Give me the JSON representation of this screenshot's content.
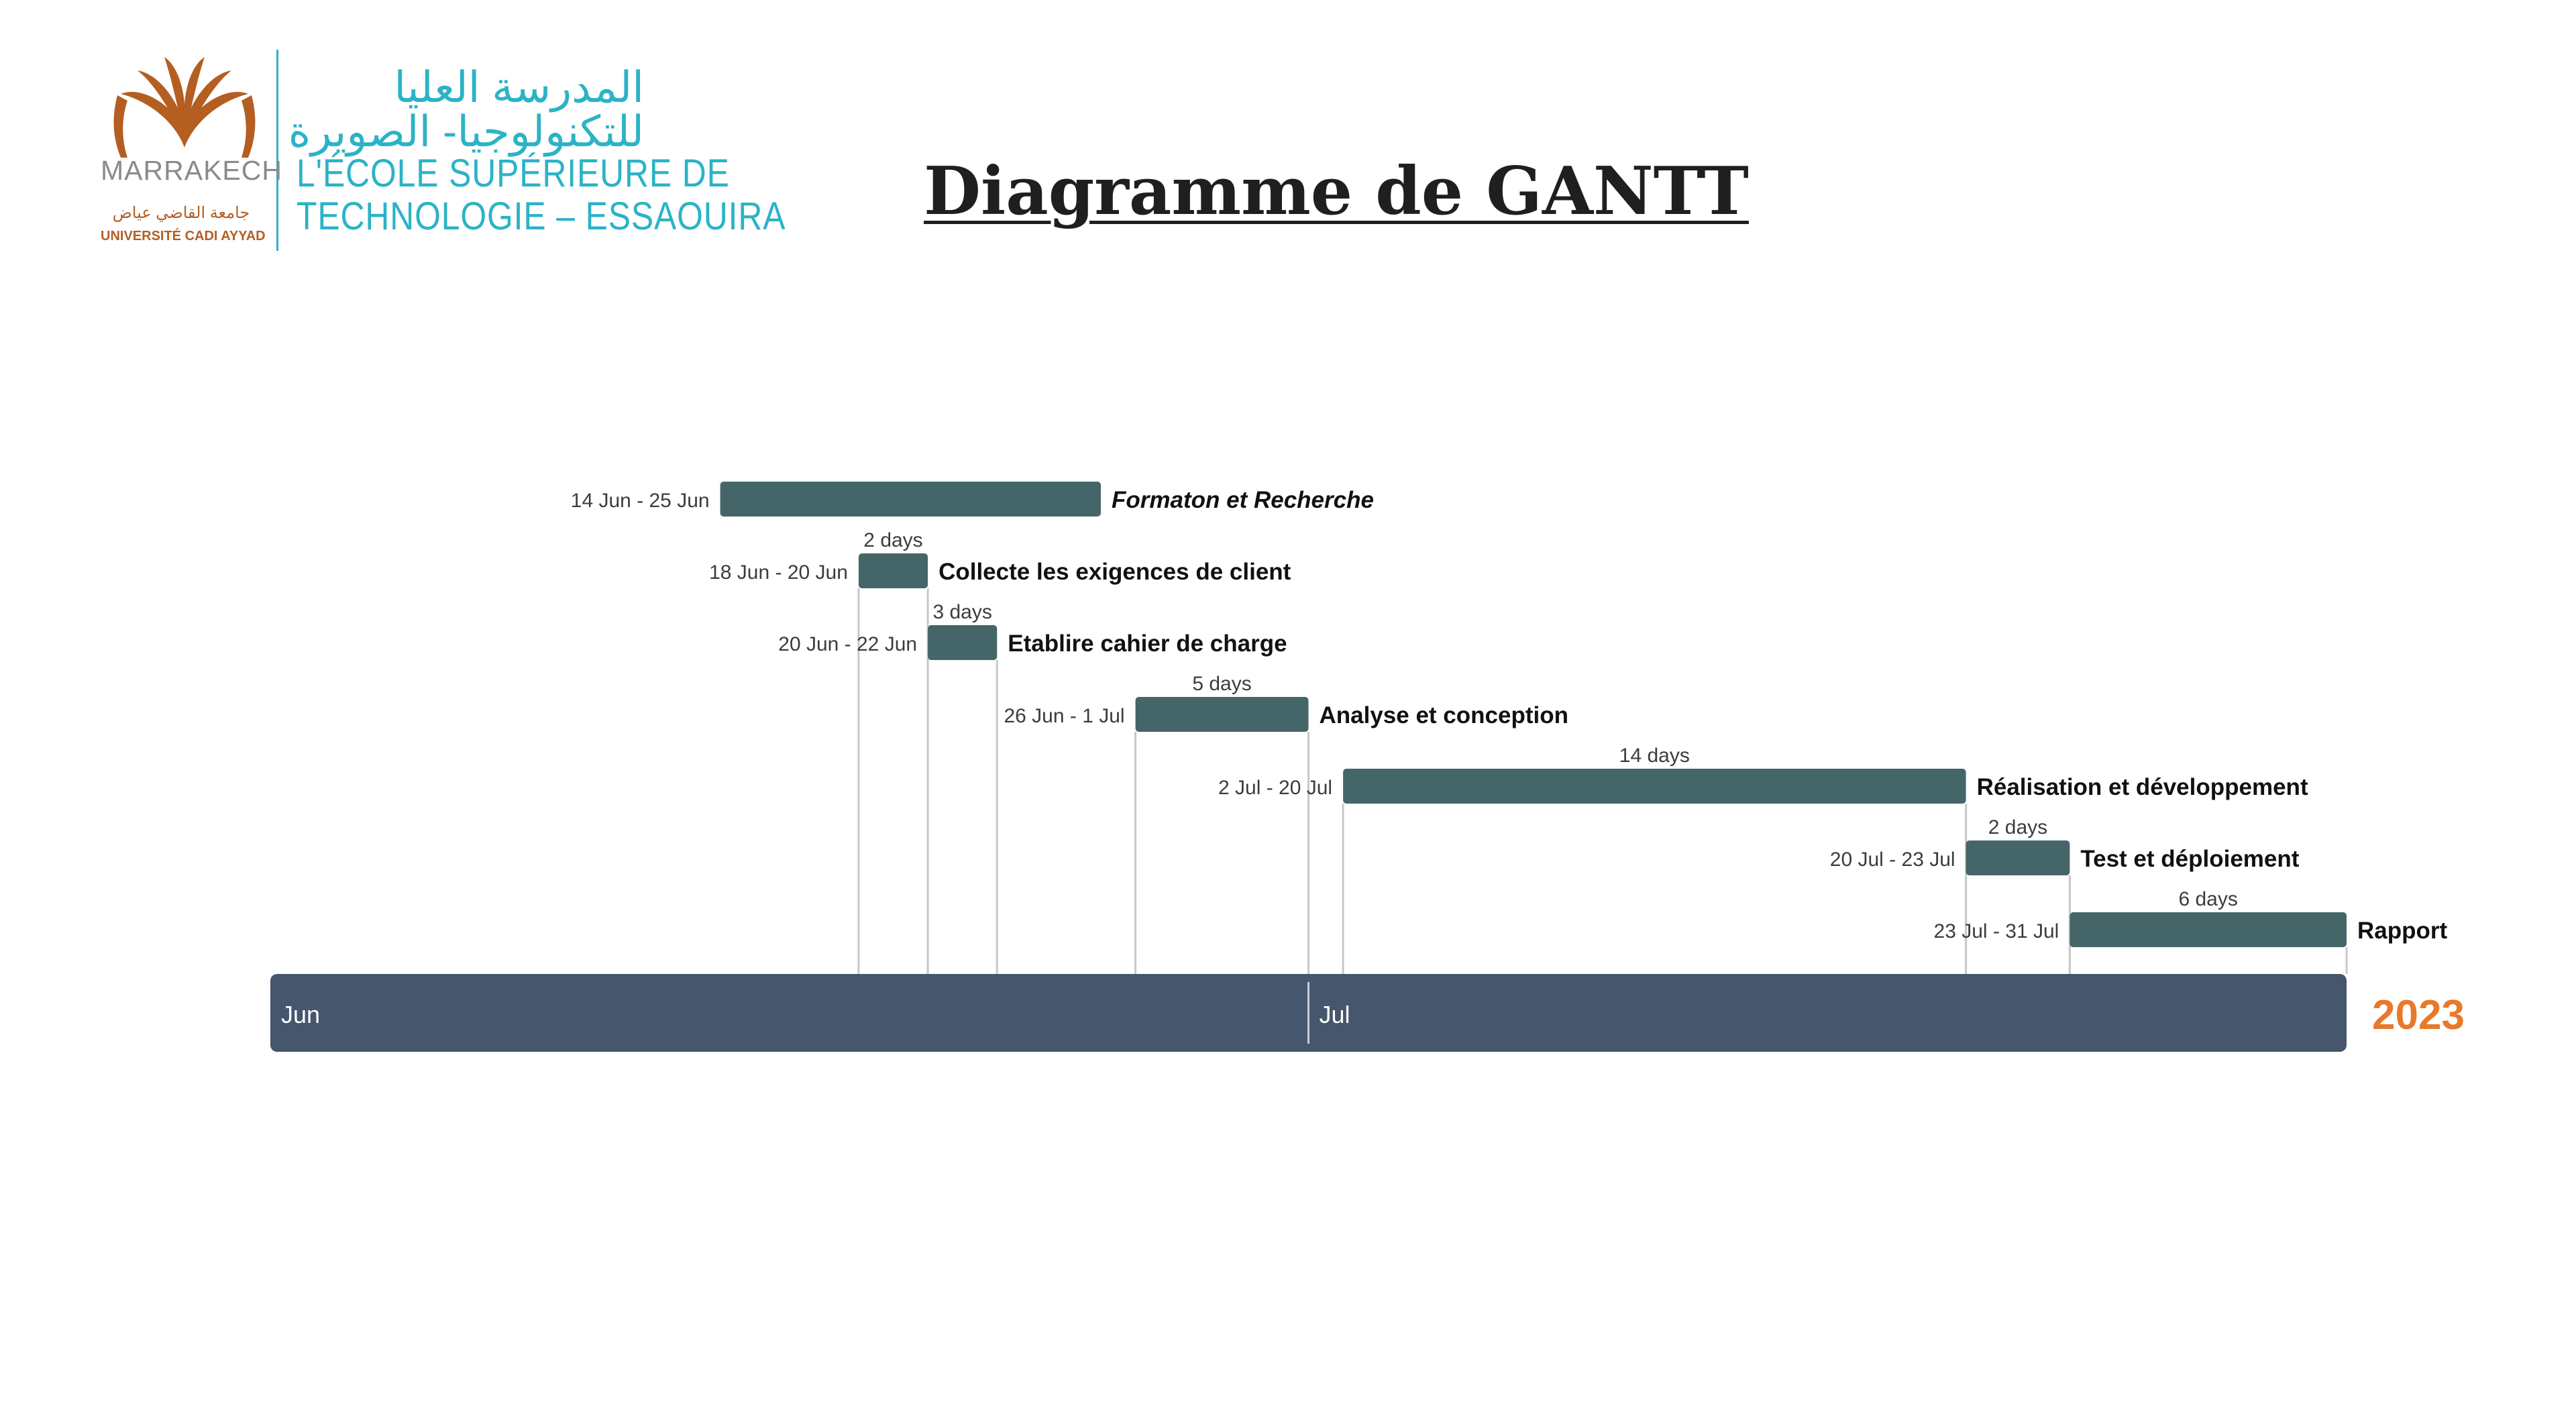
{
  "page": {
    "title": "Diagramme de GANTT",
    "logo": {
      "arabic_line1": "المدرسة العليا",
      "arabic_line2": "للتكنولوجيا- الصويرة",
      "french_line1": "L'ÉCOLE SUPÉRIEURE DE",
      "french_line2": "TECHNOLOGIE – ESSAOUIRA",
      "city": "MARRAKECH",
      "university_arabic": "جامعة القاضي عياض",
      "university_french": "UNIVERSITÉ CADI AYYAD"
    }
  },
  "chart_data": {
    "type": "gantt",
    "year": "2023",
    "x_range": [
      "2023-06-01",
      "2023-07-31"
    ],
    "months": [
      {
        "label": "Jun",
        "start": "2023-06-01"
      },
      {
        "label": "Jul",
        "start": "2023-07-01"
      }
    ],
    "tasks": [
      {
        "name": "Formaton et Recherche",
        "start": "2023-06-14",
        "end": "2023-06-25",
        "range_label": "14 Jun - 25 Jun",
        "duration_label": "",
        "italic": true
      },
      {
        "name": "Collecte les exigences de client",
        "start": "2023-06-18",
        "end": "2023-06-20",
        "range_label": "18 Jun - 20 Jun",
        "duration_label": "2 days",
        "italic": false
      },
      {
        "name": "Etablire cahier de charge",
        "start": "2023-06-20",
        "end": "2023-06-22",
        "range_label": "20 Jun - 22 Jun",
        "duration_label": "3 days",
        "italic": false
      },
      {
        "name": "Analyse et conception",
        "start": "2023-06-26",
        "end": "2023-07-01",
        "range_label": "26 Jun - 1 Jul",
        "duration_label": "5 days",
        "italic": false
      },
      {
        "name": "Réalisation et développement",
        "start": "2023-07-02",
        "end": "2023-07-20",
        "range_label": "2 Jul - 20 Jul",
        "duration_label": "14 days",
        "italic": false
      },
      {
        "name": "Test et déploiement",
        "start": "2023-07-20",
        "end": "2023-07-23",
        "range_label": "20 Jul - 23 Jul",
        "duration_label": "2 days",
        "italic": false
      },
      {
        "name": "Rapport",
        "start": "2023-07-23",
        "end": "2023-07-31",
        "range_label": "23 Jul - 31 Jul",
        "duration_label": "6 days",
        "italic": false
      }
    ],
    "colors": {
      "bar": "#456668",
      "timeline": "#45566d",
      "year": "#e8792b",
      "leader": "#c8c8c8",
      "label": "#3c3c3c"
    }
  }
}
